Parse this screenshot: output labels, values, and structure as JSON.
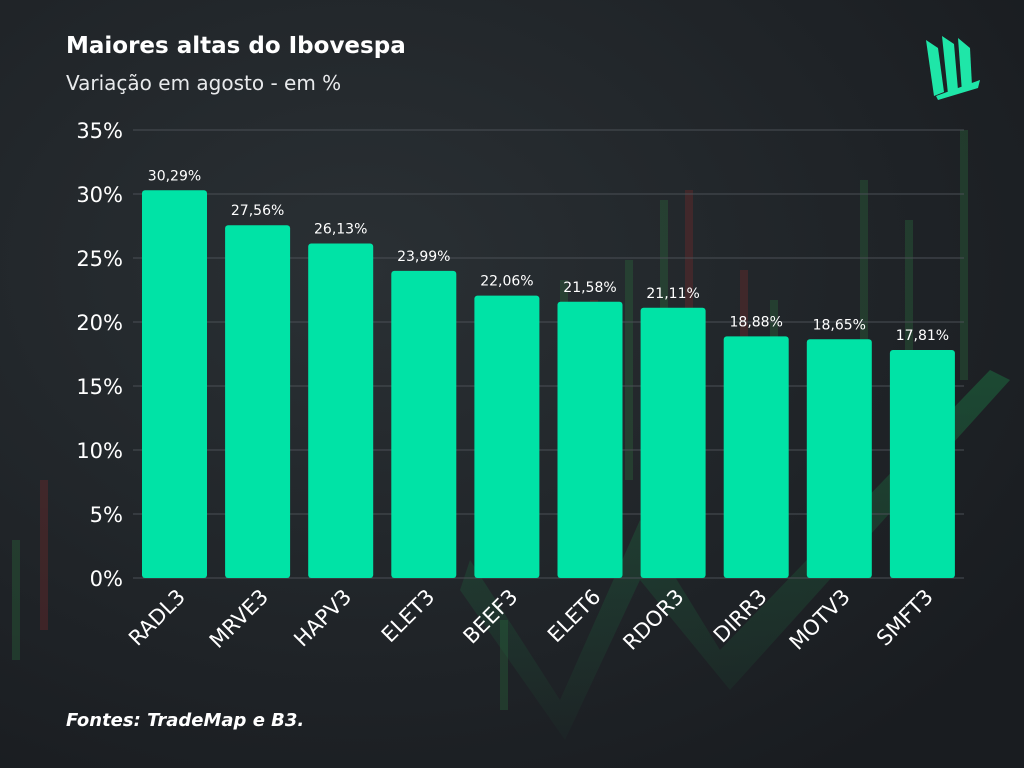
{
  "header": {
    "title": "Maiores altas do Ibovespa",
    "subtitle": "Variação em agosto - em %"
  },
  "footer": {
    "source": "Fontes: TradeMap e B3."
  },
  "colors": {
    "bar": "#00e3a6",
    "background": "#1e2226",
    "grid": "#4a4f55",
    "logo": "#1fe6a8"
  },
  "icons": {
    "logo": "brand-logo-icon"
  },
  "chart_data": {
    "type": "bar",
    "categories": [
      "RADL3",
      "MRVE3",
      "HAPV3",
      "ELET3",
      "BEEF3",
      "ELET6",
      "RDOR3",
      "DIRR3",
      "MOTV3",
      "SMFT3"
    ],
    "values": [
      30.29,
      27.56,
      26.13,
      23.99,
      22.06,
      21.58,
      21.11,
      18.88,
      18.65,
      17.81
    ],
    "data_labels": [
      "30,29%",
      "27,56%",
      "26,13%",
      "23,99%",
      "22,06%",
      "21,58%",
      "21,11%",
      "18,88%",
      "18,65%",
      "17,81%"
    ],
    "title": "Maiores altas do Ibovespa",
    "subtitle": "Variação em agosto - em %",
    "xlabel": "",
    "ylabel": "",
    "ylim": [
      0,
      35
    ],
    "yticks": [
      0,
      5,
      10,
      15,
      20,
      25,
      30,
      35
    ],
    "ytick_labels": [
      "0%",
      "5%",
      "10%",
      "15%",
      "20%",
      "25%",
      "30%",
      "35%"
    ],
    "grid": true,
    "legend": "none"
  }
}
